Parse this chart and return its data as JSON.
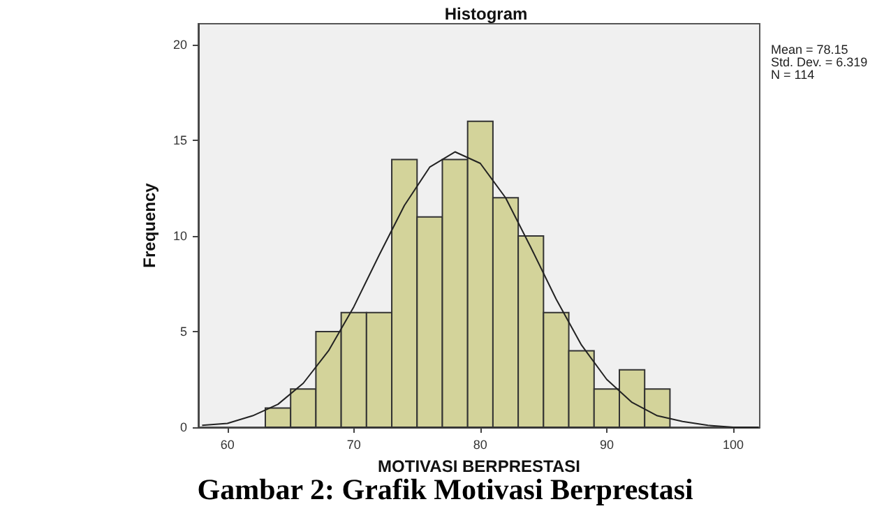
{
  "chart_data": {
    "type": "histogram",
    "title": "Histogram",
    "xlabel": "MOTIVASI BERPRESTASI",
    "ylabel": "Frequency",
    "annotations": [
      "Mean = 78.15",
      "Std. Dev. = 6.319",
      "N = 114",
      "Gambar 2: Grafik Motivasi Berprestasi"
    ],
    "bins": [
      63,
      65,
      67,
      69,
      71,
      73,
      75,
      77,
      79,
      81,
      83,
      85,
      87,
      89,
      91,
      93,
      95
    ],
    "values": [
      1,
      2,
      5,
      6,
      6,
      14,
      11,
      14,
      16,
      12,
      10,
      6,
      4,
      2,
      3,
      2
    ],
    "color": "#d3d39a",
    "series": [
      {
        "type": "line",
        "color": "#222222",
        "marker": "none",
        "x": [
          58,
          60,
          62,
          64,
          66,
          68,
          70,
          72,
          74,
          76,
          78,
          80,
          82,
          84,
          86,
          88,
          90,
          92,
          94,
          96,
          98,
          100,
          102
        ],
        "values": [
          0.1,
          0.2,
          0.6,
          1.2,
          2.3,
          4.0,
          6.3,
          9.0,
          11.6,
          13.6,
          14.4,
          13.8,
          12.0,
          9.4,
          6.7,
          4.3,
          2.5,
          1.3,
          0.6,
          0.3,
          0.1,
          0.0,
          0.0
        ]
      }
    ],
    "xlim": [
      57.7,
      102.1
    ],
    "xticks": [
      60,
      70,
      80,
      90,
      100
    ],
    "ylim": [
      0,
      21.1
    ],
    "yticks": [
      0,
      5,
      10,
      15,
      20
    ],
    "grid": false
  }
}
